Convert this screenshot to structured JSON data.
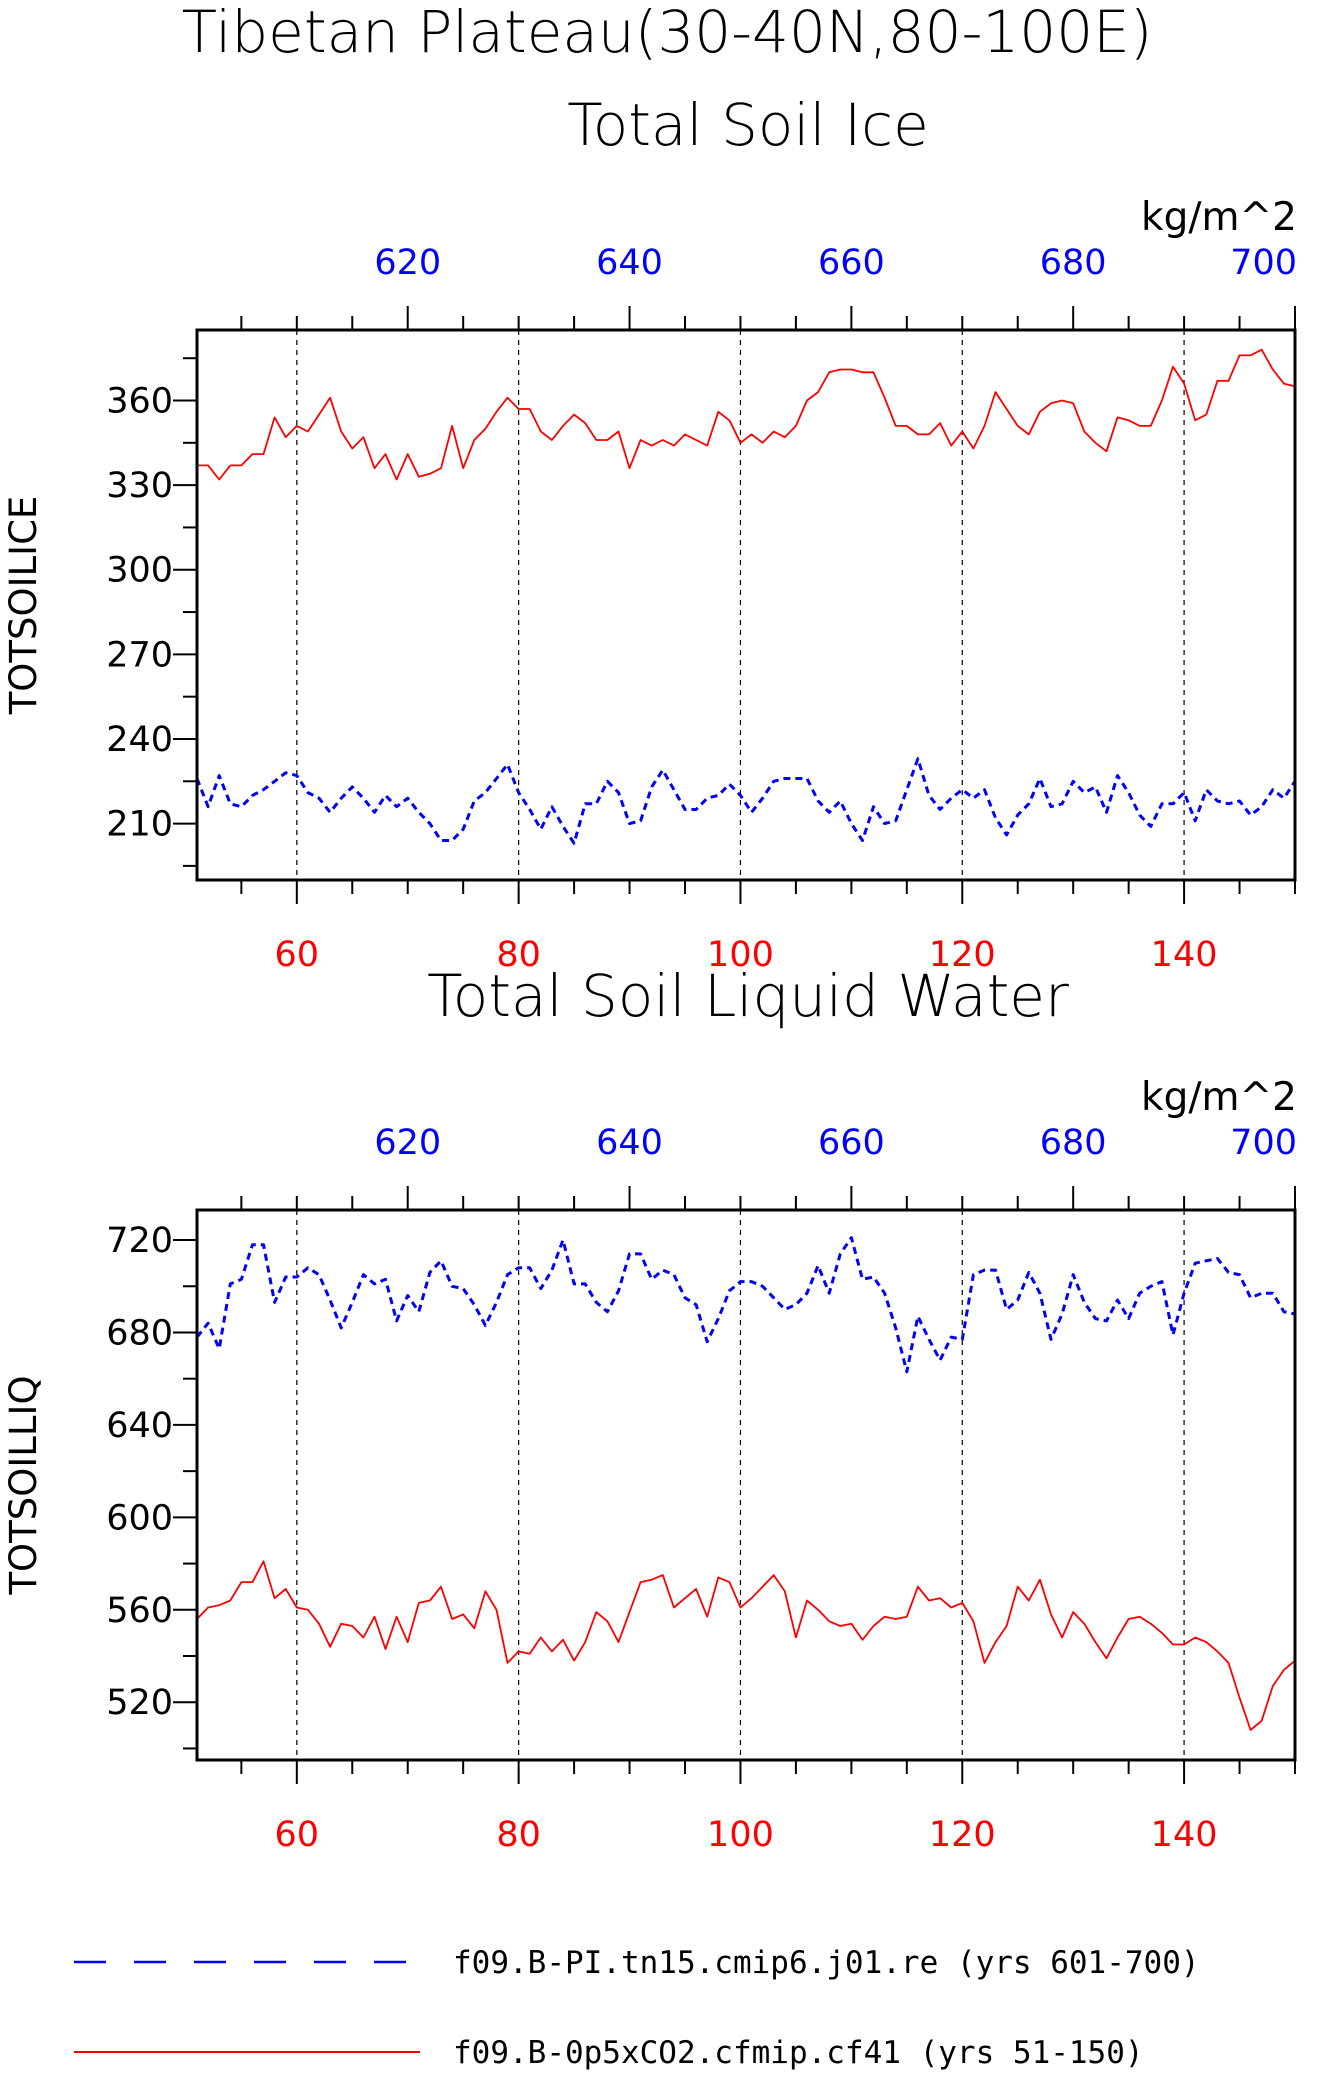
{
  "title": {
    "line1": "Tibetan Plateau(30-40N,80-100E)"
  },
  "colors": {
    "series_a": "#ff0000",
    "series_b": "#0000ff",
    "axis": "#000000"
  },
  "legend": [
    {
      "label": "f09.B-PI.tn15.cmip6.j01.re (yrs 601-700)",
      "color": "#0000ff",
      "style": "dashed"
    },
    {
      "label": "f09.B-0p5xCO2.cfmip.cf41 (yrs 51-150)",
      "color": "#ff0000",
      "style": "solid"
    }
  ],
  "chart_data": [
    {
      "type": "line",
      "title": "Total Soil Ice",
      "ylabel": "TOTSOILICE",
      "unit_label": "kg/m^2",
      "ylim": [
        190,
        385
      ],
      "yticks": [
        210,
        240,
        270,
        300,
        330,
        360
      ],
      "x_bottom": {
        "range": [
          51,
          150
        ],
        "ticks": [
          60,
          80,
          100,
          120,
          140
        ],
        "color": "#ff0000"
      },
      "x_top": {
        "range": [
          601,
          700
        ],
        "ticks": [
          620,
          640,
          660,
          680,
          700
        ],
        "color": "#0000ff"
      },
      "grid": "vertical dashed at major bottom ticks",
      "series": [
        {
          "name": "f09.B-0p5xCO2.cfmip.cf41 (yrs 51-150)",
          "axis": "bottom",
          "color": "#ff0000",
          "style": "solid",
          "x_start": 51,
          "values": [
            337,
            337,
            332,
            337,
            337,
            341,
            341,
            354,
            347,
            351,
            349,
            355,
            361,
            349,
            343,
            347,
            336,
            341,
            332,
            341,
            333,
            334,
            336,
            351,
            336,
            346,
            350,
            356,
            361,
            357,
            357,
            349,
            346,
            351,
            355,
            352,
            346,
            346,
            349,
            336,
            346,
            344,
            346,
            344,
            348,
            346,
            344,
            356,
            353,
            345,
            348,
            345,
            349,
            347,
            351,
            360,
            363,
            370,
            371,
            371,
            370,
            370,
            361,
            351,
            351,
            348,
            348,
            352,
            344,
            349,
            343,
            351,
            363,
            357,
            351,
            348,
            356,
            359,
            360,
            359,
            349,
            345,
            342,
            354,
            353,
            351,
            351,
            360,
            372,
            366,
            353,
            355,
            367,
            367,
            376,
            376,
            378,
            371,
            366,
            365
          ]
        },
        {
          "name": "f09.B-PI.tn15.cmip6.j01.re (yrs 601-700)",
          "axis": "top",
          "color": "#0000ff",
          "style": "dashed",
          "x_start": 601,
          "values": [
            226,
            216,
            227,
            217,
            216,
            220,
            222,
            225,
            228,
            227,
            221,
            219,
            214,
            219,
            223,
            219,
            214,
            220,
            216,
            219,
            214,
            210,
            204,
            204,
            208,
            218,
            221,
            226,
            231,
            221,
            215,
            208,
            216,
            209,
            203,
            217,
            217,
            225,
            221,
            210,
            211,
            223,
            229,
            222,
            215,
            215,
            219,
            220,
            224,
            220,
            214,
            219,
            225,
            226,
            226,
            226,
            218,
            214,
            218,
            210,
            204,
            216,
            210,
            211,
            222,
            233,
            220,
            215,
            219,
            222,
            219,
            222,
            212,
            206,
            213,
            217,
            226,
            216,
            217,
            225,
            221,
            223,
            214,
            227,
            221,
            213,
            209,
            217,
            217,
            221,
            211,
            222,
            218,
            217,
            218,
            213,
            216,
            222,
            219,
            225
          ]
        }
      ]
    },
    {
      "type": "line",
      "title": "Total Soil Liquid Water",
      "ylabel": "TOTSOILLIQ",
      "unit_label": "kg/m^2",
      "ylim": [
        495,
        733
      ],
      "yticks": [
        520,
        560,
        600,
        640,
        680,
        720
      ],
      "x_bottom": {
        "range": [
          51,
          150
        ],
        "ticks": [
          60,
          80,
          100,
          120,
          140
        ],
        "color": "#ff0000"
      },
      "x_top": {
        "range": [
          601,
          700
        ],
        "ticks": [
          620,
          640,
          660,
          680,
          700
        ],
        "color": "#0000ff"
      },
      "grid": "vertical dashed at major bottom ticks",
      "series": [
        {
          "name": "f09.B-0p5xCO2.cfmip.cf41 (yrs 51-150)",
          "axis": "bottom",
          "color": "#ff0000",
          "style": "solid",
          "x_start": 51,
          "values": [
            556,
            561,
            562,
            564,
            572,
            572,
            581,
            565,
            569,
            561,
            560,
            554,
            544,
            554,
            553,
            548,
            557,
            543,
            557,
            546,
            563,
            564,
            570,
            556,
            558,
            552,
            568,
            560,
            537,
            542,
            541,
            548,
            542,
            547,
            538,
            546,
            559,
            555,
            546,
            559,
            572,
            573,
            575,
            561,
            565,
            569,
            557,
            574,
            572,
            561,
            565,
            570,
            575,
            568,
            548,
            564,
            560,
            555,
            553,
            554,
            547,
            553,
            557,
            556,
            557,
            570,
            564,
            565,
            561,
            563,
            555,
            537,
            546,
            553,
            570,
            564,
            573,
            558,
            548,
            559,
            554,
            546,
            539,
            548,
            556,
            557,
            554,
            550,
            545,
            545,
            548,
            546,
            542,
            537,
            522,
            508,
            512,
            527,
            534,
            538
          ]
        },
        {
          "name": "f09.B-PI.tn15.cmip6.j01.re (yrs 601-700)",
          "axis": "top",
          "color": "#0000ff",
          "style": "dashed",
          "x_start": 601,
          "values": [
            678,
            684,
            673,
            701,
            703,
            718,
            718,
            693,
            704,
            704,
            708,
            705,
            694,
            682,
            693,
            705,
            701,
            703,
            685,
            696,
            689,
            706,
            711,
            700,
            699,
            692,
            683,
            693,
            705,
            708,
            708,
            699,
            707,
            720,
            701,
            701,
            693,
            689,
            698,
            714,
            714,
            703,
            707,
            705,
            695,
            692,
            676,
            686,
            698,
            702,
            702,
            700,
            695,
            690,
            692,
            697,
            709,
            697,
            714,
            721,
            703,
            704,
            697,
            682,
            663,
            687,
            677,
            668,
            678,
            677,
            705,
            707,
            707,
            690,
            694,
            706,
            697,
            677,
            688,
            705,
            693,
            686,
            685,
            694,
            686,
            697,
            700,
            702,
            679,
            697,
            710,
            711,
            712,
            706,
            705,
            695,
            697,
            697,
            689,
            688
          ]
        }
      ]
    }
  ]
}
